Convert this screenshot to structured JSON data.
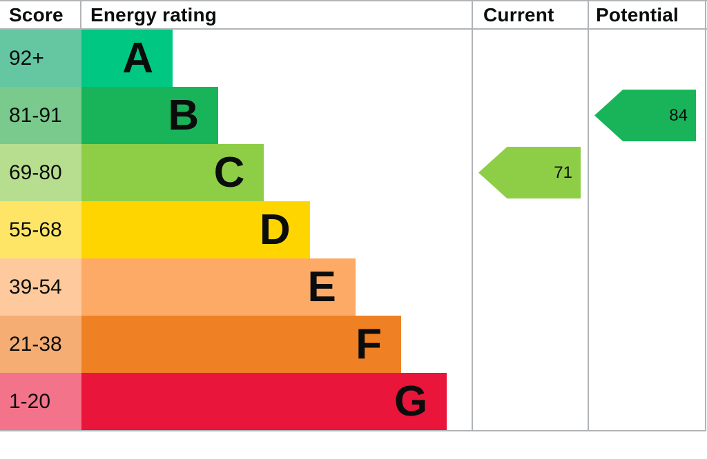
{
  "header": {
    "score": "Score",
    "energy_rating": "Energy rating",
    "current": "Current",
    "potential": "Potential"
  },
  "chart_data": {
    "type": "bar",
    "subtype": "epc-energy-rating",
    "title": "Energy rating",
    "orientation": "horizontal-stepped",
    "bands": [
      {
        "letter": "A",
        "score_range": "92+",
        "bar_color": "#00c781",
        "score_bg": "#65c7a1"
      },
      {
        "letter": "B",
        "score_range": "81-91",
        "bar_color": "#19b459",
        "score_bg": "#79ca8c"
      },
      {
        "letter": "C",
        "score_range": "69-80",
        "bar_color": "#8dce46",
        "score_bg": "#b6de8e"
      },
      {
        "letter": "D",
        "score_range": "55-68",
        "bar_color": "#ffd500",
        "score_bg": "#ffe566"
      },
      {
        "letter": "E",
        "score_range": "39-54",
        "bar_color": "#fcaa65",
        "score_bg": "#fdc99d"
      },
      {
        "letter": "F",
        "score_range": "21-38",
        "bar_color": "#ef8023",
        "score_bg": "#f5ad73"
      },
      {
        "letter": "G",
        "score_range": "1-20",
        "bar_color": "#e9153b",
        "score_bg": "#f2738a"
      }
    ],
    "current": {
      "value": 71,
      "band": "C",
      "color": "#8dce46"
    },
    "potential": {
      "value": 84,
      "band": "B",
      "color": "#19b459"
    }
  },
  "colors": {
    "border": "#b1b4b6",
    "text": "#0b0c0c",
    "background": "#ffffff"
  }
}
